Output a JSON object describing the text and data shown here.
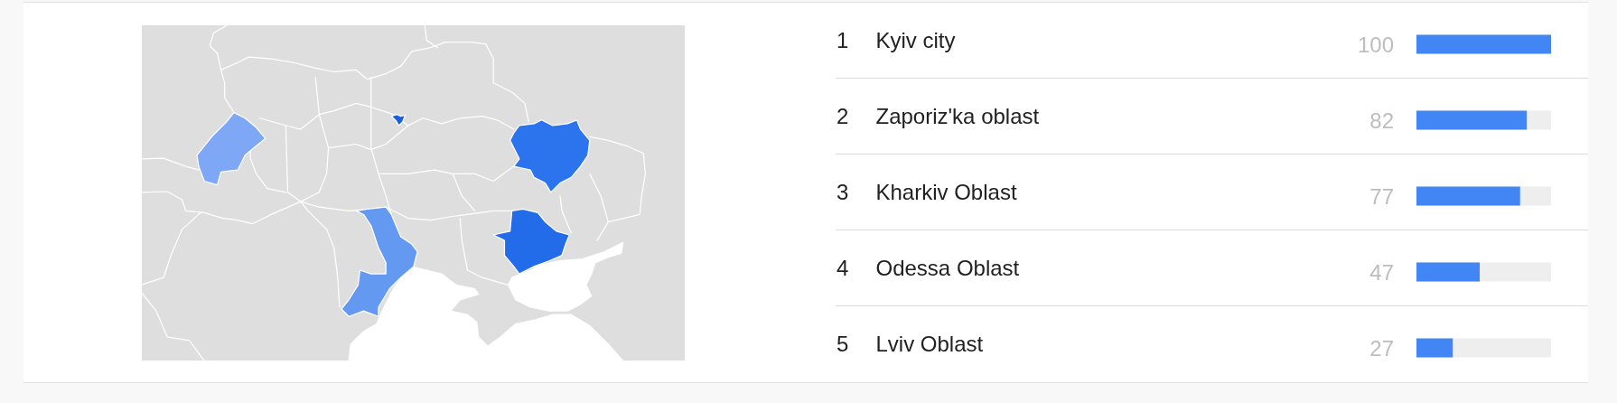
{
  "chart_data": {
    "type": "bar",
    "orientation": "horizontal",
    "categories": [
      "Kyiv city",
      "Zaporiz'ka oblast",
      "Kharkiv Oblast",
      "Odessa Oblast",
      "Lviv Oblast"
    ],
    "values": [
      100,
      82,
      77,
      47,
      27
    ],
    "color": "#4285f4",
    "xlim": [
      0,
      100
    ],
    "data_labels": true,
    "tick_labels": "y",
    "annotations": [
      "1",
      "2",
      "3",
      "4",
      "5"
    ]
  }
}
